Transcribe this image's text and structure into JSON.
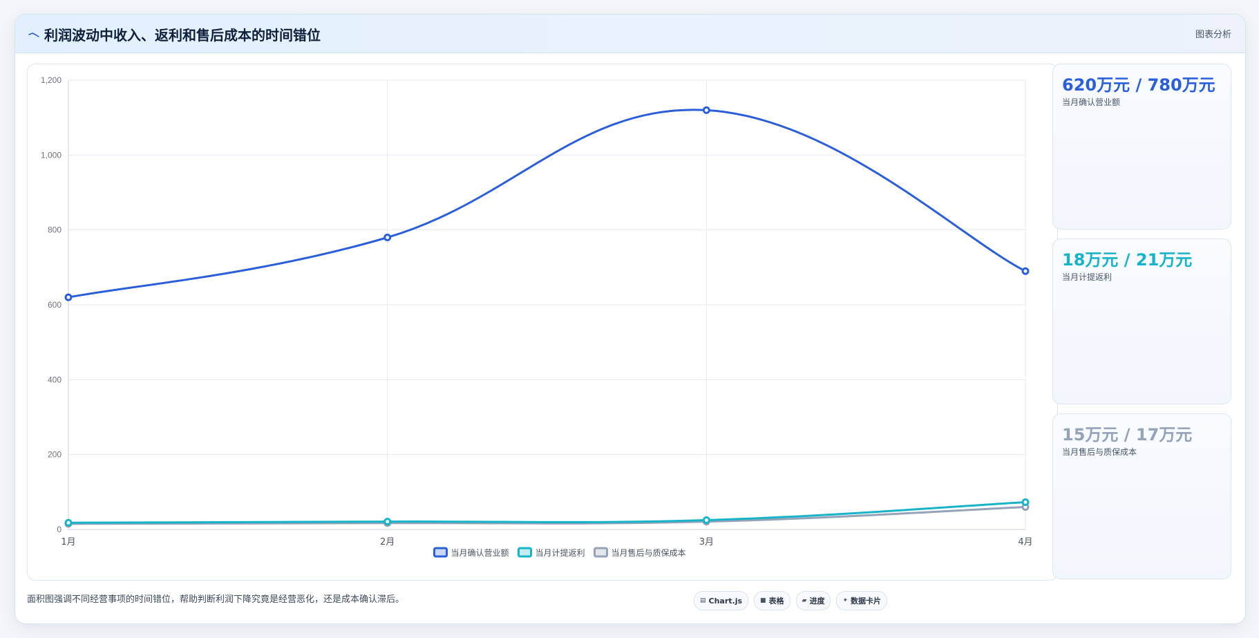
{
  "header": {
    "title": "利润波动中收入、返利和售后成本的时间错位",
    "action_label": "图表分析"
  },
  "chart_data": {
    "type": "line",
    "categories": [
      "1月",
      "2月",
      "3月",
      "4月"
    ],
    "ylim": [
      0,
      1200
    ],
    "yticks": [
      0,
      200,
      400,
      600,
      800,
      1000,
      1200
    ],
    "ytick_labels": [
      "0",
      "200",
      "400",
      "600",
      "800",
      "1,000",
      "1,200"
    ],
    "grid": true,
    "legend_position": "bottom",
    "series": [
      {
        "name": "当月确认营业额",
        "values": [
          620,
          780,
          1120,
          690
        ],
        "color": "#2b5fd9"
      },
      {
        "name": "当月计提返利",
        "values": [
          18,
          21,
          25,
          73
        ],
        "color": "#17b3c9"
      },
      {
        "name": "当月售后与质保成本",
        "values": [
          15,
          17,
          21,
          60
        ],
        "color": "#94a3b8"
      }
    ]
  },
  "stats": [
    {
      "value": "620万元 / 780万元",
      "label": "当月确认营业额",
      "color": "#2b5fd9"
    },
    {
      "value": "18万元 / 21万元",
      "label": "当月计提返利",
      "color": "#17b3c9"
    },
    {
      "value": "15万元 / 17万元",
      "label": "当月售后与质保成本",
      "color": "#94a3b8"
    }
  ],
  "caption": "面积图强调不同经营事项的时间错位，帮助判断利润下降究竟是经营恶化，还是成本确认滞后。",
  "chips": [
    {
      "icon": "▤",
      "label": "Chart.js",
      "icon_name": "chart-icon"
    },
    {
      "icon": "■",
      "label": "表格",
      "icon_name": "table-icon"
    },
    {
      "icon": "▰",
      "label": "进度",
      "icon_name": "progress-icon"
    },
    {
      "icon": "✦",
      "label": "数据卡片",
      "icon_name": "sparkle-icon"
    }
  ]
}
